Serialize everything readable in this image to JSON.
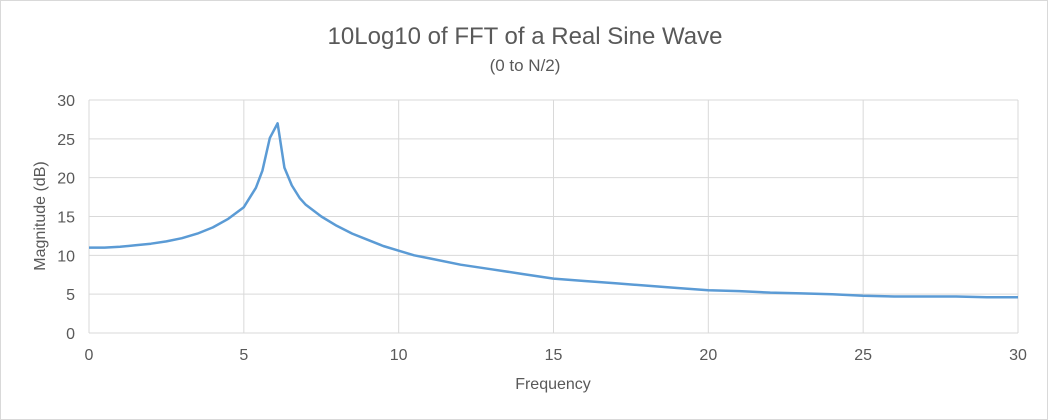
{
  "chart_data": {
    "type": "line",
    "title": "10Log10 of FFT of a Real Sine Wave",
    "subtitle": "(0 to N/2)",
    "xlabel": "Frequency",
    "ylabel": "Magnitude (dB)",
    "xlim": [
      0,
      30
    ],
    "ylim": [
      0,
      30
    ],
    "xticks": [
      0,
      5,
      10,
      15,
      20,
      25,
      30
    ],
    "yticks": [
      0,
      5,
      10,
      15,
      20,
      25,
      30
    ],
    "grid": true,
    "legend": "none",
    "line_color": "#5b9bd5",
    "series": [
      {
        "x": [
          0,
          0.5,
          1,
          1.5,
          2,
          2.5,
          3,
          3.5,
          4,
          4.5,
          5,
          5.39,
          5.6,
          5.84,
          6.09,
          6.31,
          6.55,
          6.8,
          7,
          7.5,
          8,
          8.5,
          9,
          9.5,
          10,
          10.5,
          11,
          12,
          13,
          14,
          15,
          16,
          17,
          18,
          19,
          20,
          21,
          22,
          23,
          24,
          25,
          26,
          27,
          28,
          29,
          30
        ],
        "y": [
          11.0,
          11.0,
          11.1,
          11.3,
          11.5,
          11.8,
          12.2,
          12.8,
          13.6,
          14.7,
          16.2,
          18.7,
          20.9,
          25.1,
          27.0,
          21.3,
          19.0,
          17.4,
          16.5,
          15.0,
          13.8,
          12.8,
          12.0,
          11.2,
          10.6,
          10.0,
          9.6,
          8.8,
          8.2,
          7.6,
          7.0,
          6.7,
          6.4,
          6.1,
          5.8,
          5.5,
          5.4,
          5.2,
          5.1,
          5.0,
          4.8,
          4.7,
          4.7,
          4.7,
          4.6,
          4.6
        ]
      }
    ]
  }
}
